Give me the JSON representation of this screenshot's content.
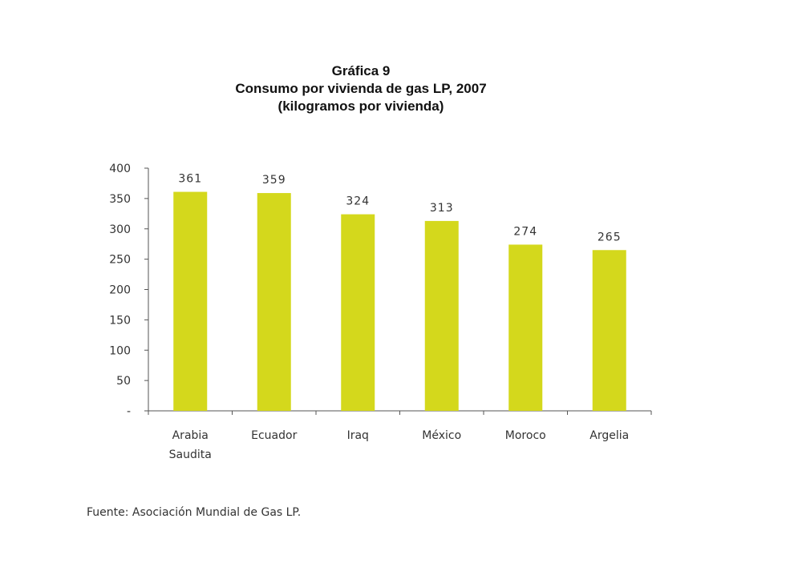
{
  "chart_data": {
    "type": "bar",
    "title": "Gráfica 9",
    "subtitle": "Consumo por vivienda de gas LP, 2007",
    "unit_note": "(kilogramos por vivienda)",
    "categories": [
      [
        "Arabia",
        "Saudita"
      ],
      [
        "Ecuador"
      ],
      [
        "Iraq"
      ],
      [
        "México"
      ],
      [
        "Moroco"
      ],
      [
        "Argelia"
      ]
    ],
    "values": [
      361,
      359,
      324,
      313,
      274,
      265
    ],
    "data_labels": [
      "361",
      "359",
      "324",
      "313",
      "274",
      "265"
    ],
    "yticks": [
      "-",
      "50",
      "100",
      "150",
      "200",
      "250",
      "300",
      "350",
      "400"
    ],
    "ylim": [
      0,
      400
    ],
    "bar_color": "#d4d81c",
    "axis_color": "#555555",
    "grid": false,
    "legend": "none"
  },
  "source": "Fuente: Asociación Mundial de Gas LP."
}
